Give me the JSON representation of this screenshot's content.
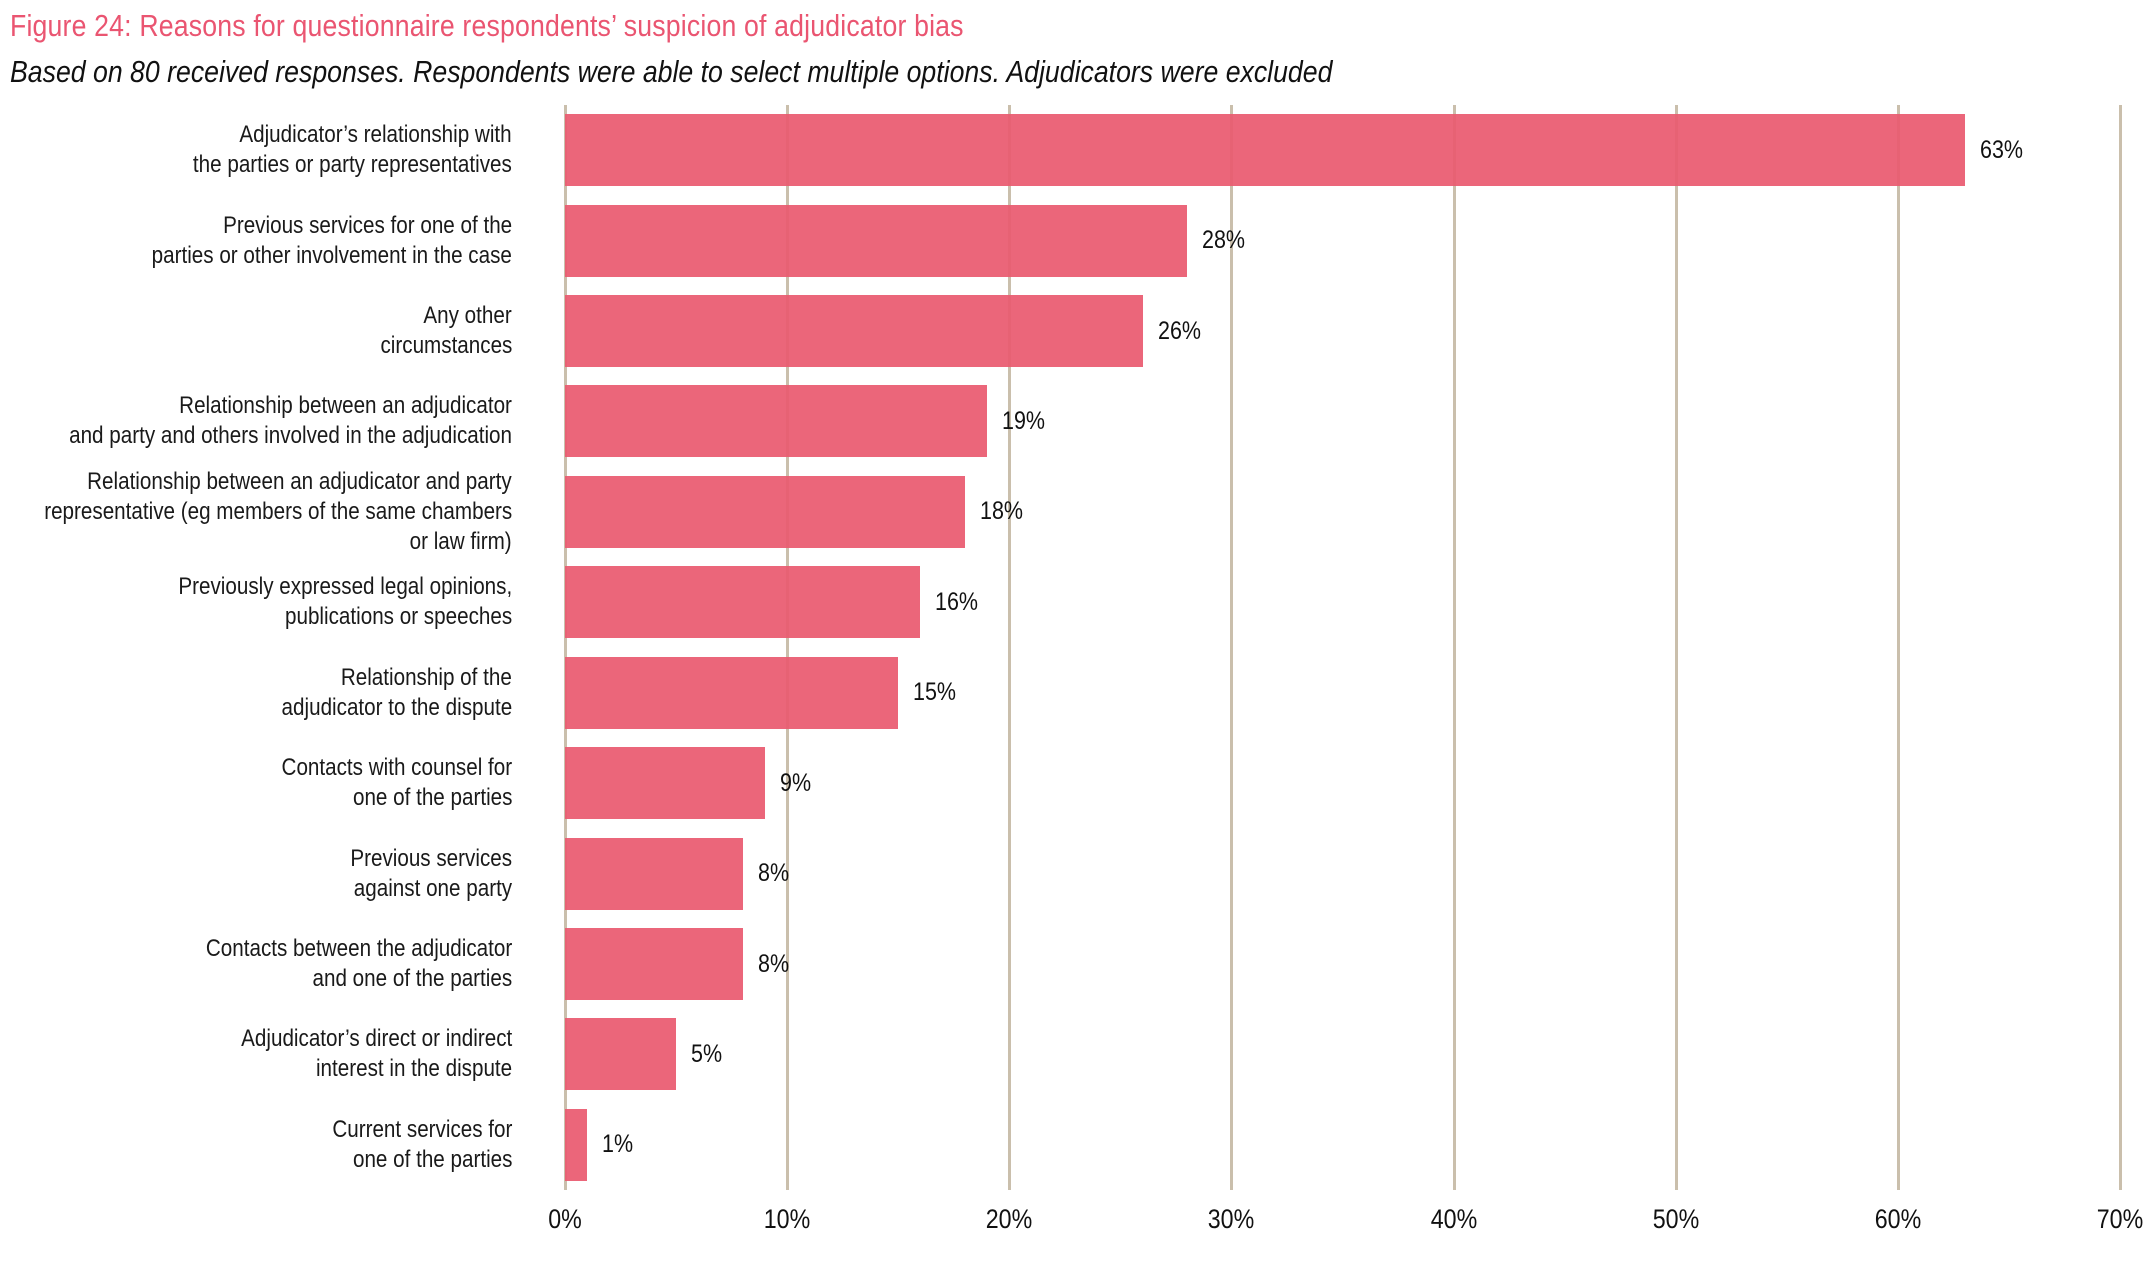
{
  "figure": {
    "title": "Figure 24: Reasons for questionnaire respondents’ suspicion of adjudicator bias",
    "subtitle": "Based on 80 received responses. Respondents were able to select multiple options. Adjudicators were excluded"
  },
  "colors": {
    "bar": "#ea6378",
    "title": "#ea5571",
    "gridline": "#cabfac",
    "text": "#1a1a1a"
  },
  "chart_data": {
    "type": "bar",
    "orientation": "horizontal",
    "title": "Figure 24: Reasons for questionnaire respondents’ suspicion of adjudicator bias",
    "subtitle": "Based on 80 received responses. Respondents were able to select multiple options. Adjudicators were excluded",
    "xlabel": "",
    "ylabel": "",
    "xlim": [
      0,
      70
    ],
    "grid": true,
    "legend": false,
    "x_ticks": [
      "0%",
      "10%",
      "20%",
      "30%",
      "40%",
      "50%",
      "60%",
      "70%"
    ],
    "categories": [
      "Adjudicator’s relationship with the parties or party representatives",
      "Previous services for one of the parties or other involvement in the case",
      "Any other circumstances",
      "Relationship between an adjudicator and party and others involved in the adjudication",
      "Relationship between an adjudicator and party representative (eg members of the same chambers or law firm)",
      "Previously expressed legal opinions, publications or speeches",
      "Relationship of the adjudicator to the dispute",
      "Contacts with counsel for one of the parties",
      "Previous services against one party",
      "Contacts between the adjudicator and one of the parties",
      "Adjudicator’s direct or indirect interest in the dispute",
      "Current services for one of the parties"
    ],
    "category_lines": [
      [
        "Adjudicator’s relationship with",
        "the parties or party representatives"
      ],
      [
        "Previous services for one of the",
        "parties or other involvement in the case"
      ],
      [
        "Any other",
        "circumstances"
      ],
      [
        "Relationship between an adjudicator",
        "and party and others involved in the adjudication"
      ],
      [
        "Relationship between an adjudicator and party",
        "representative (eg members of the same chambers",
        "or law firm)"
      ],
      [
        "Previously expressed legal opinions,",
        "publications or speeches"
      ],
      [
        "Relationship of the",
        "adjudicator to the dispute"
      ],
      [
        "Contacts with counsel for",
        "one of the parties"
      ],
      [
        "Previous services",
        "against one party"
      ],
      [
        "Contacts between the adjudicator",
        "and one of the parties"
      ],
      [
        "Adjudicator’s direct or indirect",
        "interest in the dispute"
      ],
      [
        "Current services for",
        "one of the parties"
      ]
    ],
    "values": [
      63,
      28,
      26,
      19,
      18,
      16,
      15,
      9,
      8,
      8,
      5,
      1
    ],
    "value_labels": [
      "63%",
      "28%",
      "26%",
      "19%",
      "18%",
      "16%",
      "15%",
      "9%",
      "8%",
      "8%",
      "5%",
      "1%"
    ]
  }
}
